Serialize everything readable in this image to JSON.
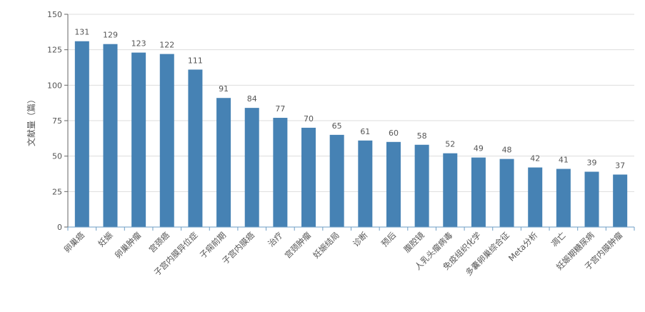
{
  "chart_data": {
    "type": "bar",
    "title": "",
    "xlabel": "",
    "ylabel": "文献量（篇）",
    "ylim": [
      0,
      150
    ],
    "yticks": [
      0,
      25,
      50,
      75,
      100,
      125,
      150
    ],
    "grid": true,
    "legend": "none",
    "bar_color": "#4682b4",
    "categories": [
      "卵巢癌",
      "妊娠",
      "卵巢肿瘤",
      "宫颈癌",
      "子宫内膜异位症",
      "子痫前期",
      "子宫内膜癌",
      "治疗",
      "宫颈肿瘤",
      "妊娠结局",
      "诊断",
      "预后",
      "腹腔镜",
      "人乳头瘤病毒",
      "免疫组织化学",
      "多囊卵巢综合征",
      "Meta分析",
      "凋亡",
      "妊娠期糖尿病",
      "子宫内膜肿瘤"
    ],
    "values": [
      131,
      129,
      123,
      122,
      111,
      91,
      84,
      77,
      70,
      65,
      61,
      60,
      58,
      52,
      49,
      48,
      42,
      41,
      39,
      37
    ]
  }
}
